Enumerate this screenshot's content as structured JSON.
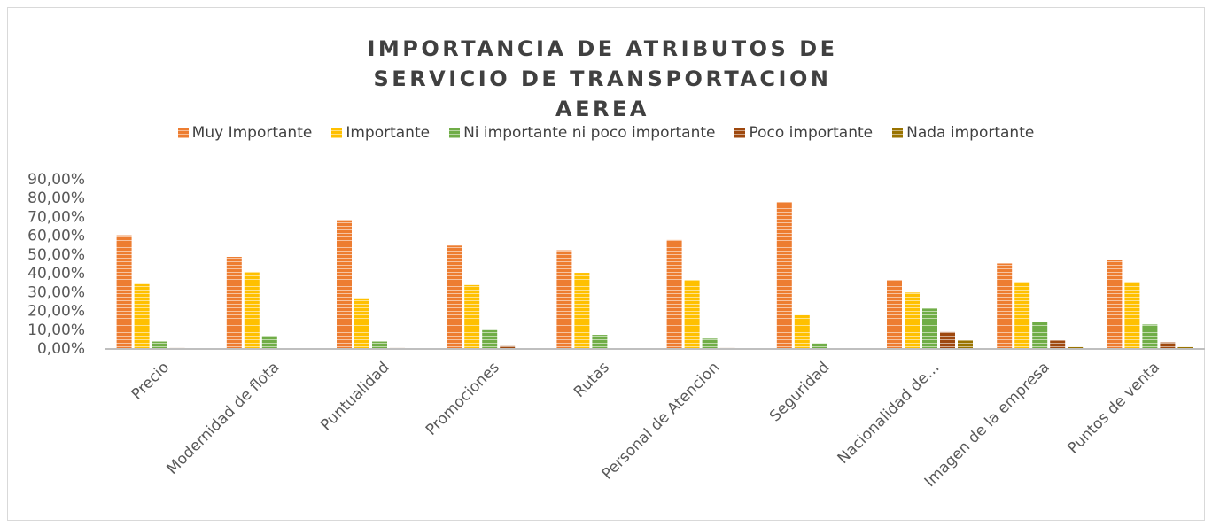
{
  "chart_data": {
    "type": "bar",
    "title": "IMPORTANCIA DE ATRIBUTOS DE SERVICIO DE TRANSPORTACION AEREA",
    "categories": [
      "Precio",
      "Modernidad de flota",
      "Puntualidad",
      "Promociones",
      "Rutas",
      "Personal de Atencion",
      "Seguridad",
      "Nacionalidad de…",
      "Imagen de la empresa",
      "Puntos de venta"
    ],
    "series": [
      {
        "name": "Muy Importante",
        "color": "#ed7d31",
        "values": [
          60.5,
          49,
          68.5,
          55,
          52.5,
          58,
          78,
          36.5,
          45.5,
          47.5
        ]
      },
      {
        "name": "Importante",
        "color": "#ffc000",
        "values": [
          34.5,
          41,
          26.5,
          34,
          40.5,
          36.5,
          18,
          30,
          35.5,
          35.5
        ]
      },
      {
        "name": "Ni importante ni poco importante",
        "color": "#70ad47",
        "values": [
          4,
          7,
          4,
          10,
          7.5,
          5.5,
          3,
          21.5,
          14.5,
          13
        ]
      },
      {
        "name": "Poco importante",
        "color": "#9e480e",
        "values": [
          0.5,
          0,
          0.5,
          1.5,
          0,
          0.5,
          0,
          9,
          4.5,
          3.5
        ]
      },
      {
        "name": "Nada importante",
        "color": "#997300",
        "values": [
          0,
          0,
          0,
          0,
          0,
          0,
          0,
          4.5,
          1,
          1
        ]
      }
    ],
    "ylim": [
      0,
      90
    ],
    "yticks": [
      {
        "value": 0,
        "label": "0,00%"
      },
      {
        "value": 10,
        "label": "10,00%"
      },
      {
        "value": 20,
        "label": "20,00%"
      },
      {
        "value": 30,
        "label": "30,00%"
      },
      {
        "value": 40,
        "label": "40,00%"
      },
      {
        "value": 50,
        "label": "50,00%"
      },
      {
        "value": 60,
        "label": "60,00%"
      },
      {
        "value": 70,
        "label": "70,00%"
      },
      {
        "value": 80,
        "label": "80,00%"
      },
      {
        "value": 90,
        "label": "90,00%"
      }
    ],
    "grid": false,
    "legend": "top"
  }
}
